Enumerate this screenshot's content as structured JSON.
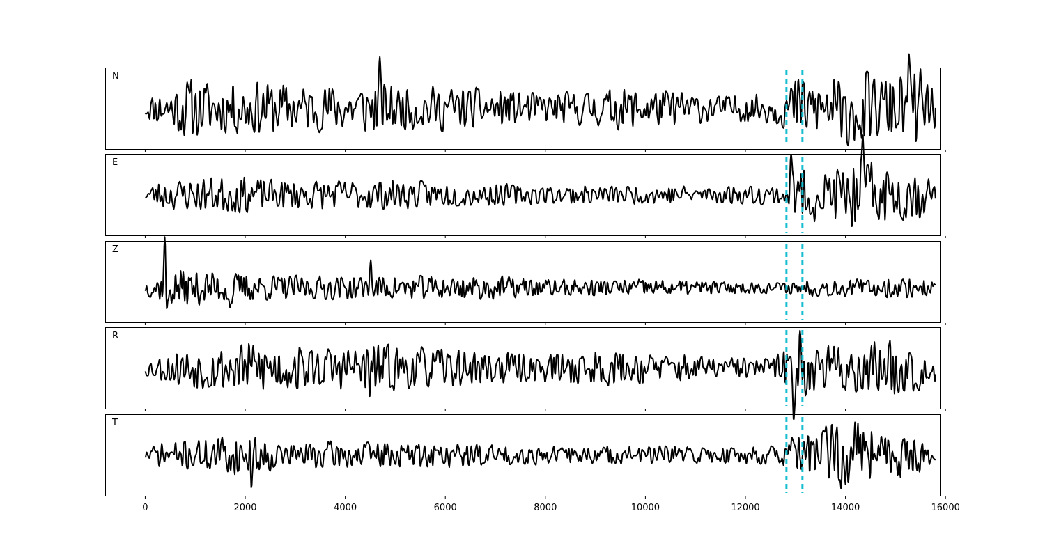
{
  "chart_data": {
    "type": "line",
    "title": "",
    "xlabel": "",
    "ylabel": "",
    "xlim": [
      -800,
      15900
    ],
    "xticks": [
      0,
      2000,
      4000,
      6000,
      8000,
      10000,
      12000,
      14000,
      16000
    ],
    "xtick_labels": [
      "0",
      "2000",
      "4000",
      "6000",
      "8000",
      "10000",
      "12000",
      "14000",
      "16000"
    ],
    "n_samples": 15800,
    "colors": {
      "trace": "#000000",
      "marker": "#17becf"
    },
    "markers": [
      12820,
      13140
    ],
    "grid": false,
    "panels": [
      {
        "label": "N",
        "seed": 11,
        "period": 115,
        "ylim": [
          -1.15,
          1.15
        ],
        "env": [
          [
            0,
            0.25
          ],
          [
            150,
            0.35
          ],
          [
            600,
            0.55
          ],
          [
            800,
            0.75
          ],
          [
            1500,
            0.6
          ],
          [
            2200,
            0.65
          ],
          [
            3500,
            0.55
          ],
          [
            4000,
            0.6
          ],
          [
            4600,
            0.65
          ],
          [
            5200,
            0.5
          ],
          [
            6000,
            0.55
          ],
          [
            7000,
            0.45
          ],
          [
            8000,
            0.35
          ],
          [
            9000,
            0.45
          ],
          [
            9500,
            0.5
          ],
          [
            10500,
            0.45
          ],
          [
            11500,
            0.3
          ],
          [
            12400,
            0.35
          ],
          [
            12800,
            0.5
          ],
          [
            13000,
            0.8
          ],
          [
            13500,
            0.7
          ],
          [
            14000,
            0.9
          ],
          [
            14500,
            0.85
          ],
          [
            15000,
            0.75
          ],
          [
            15500,
            0.95
          ],
          [
            15800,
            0.55
          ]
        ],
        "spikes": [
          [
            4690,
            0.75
          ],
          [
            13930,
            -1.05
          ],
          [
            14330,
            -1.0
          ],
          [
            15260,
            0.85
          ]
        ]
      },
      {
        "label": "E",
        "seed": 23,
        "period": 120,
        "ylim": [
          -1.15,
          1.15
        ],
        "env": [
          [
            0,
            0.15
          ],
          [
            300,
            0.35
          ],
          [
            1800,
            0.45
          ],
          [
            2500,
            0.35
          ],
          [
            4000,
            0.35
          ],
          [
            5000,
            0.35
          ],
          [
            6000,
            0.3
          ],
          [
            8000,
            0.22
          ],
          [
            9000,
            0.22
          ],
          [
            10000,
            0.22
          ],
          [
            11000,
            0.22
          ],
          [
            12000,
            0.22
          ],
          [
            12700,
            0.25
          ],
          [
            12900,
            0.55
          ],
          [
            13200,
            0.65
          ],
          [
            13800,
            0.65
          ],
          [
            14300,
            0.95
          ],
          [
            14800,
            0.65
          ],
          [
            15500,
            0.6
          ],
          [
            15800,
            0.3
          ]
        ],
        "spikes": [
          [
            12910,
            0.8
          ],
          [
            14240,
            -0.9
          ],
          [
            14360,
            0.95
          ]
        ]
      },
      {
        "label": "Z",
        "seed": 37,
        "period": 105,
        "ylim": [
          -0.85,
          1.15
        ],
        "env": [
          [
            0,
            0.15
          ],
          [
            300,
            0.3
          ],
          [
            500,
            0.4
          ],
          [
            1200,
            0.35
          ],
          [
            2000,
            0.3
          ],
          [
            3000,
            0.25
          ],
          [
            4500,
            0.25
          ],
          [
            6000,
            0.25
          ],
          [
            7000,
            0.25
          ],
          [
            8000,
            0.18
          ],
          [
            10000,
            0.18
          ],
          [
            12000,
            0.12
          ],
          [
            12800,
            0.12
          ],
          [
            13200,
            0.18
          ],
          [
            14500,
            0.18
          ],
          [
            15300,
            0.22
          ],
          [
            15800,
            0.15
          ]
        ],
        "spikes": [
          [
            390,
            1.1
          ],
          [
            440,
            -0.75
          ],
          [
            1700,
            -0.55
          ],
          [
            4500,
            0.6
          ]
        ]
      },
      {
        "label": "R",
        "seed": 53,
        "period": 115,
        "ylim": [
          -1.15,
          1.15
        ],
        "env": [
          [
            0,
            0.2
          ],
          [
            400,
            0.35
          ],
          [
            800,
            0.5
          ],
          [
            1500,
            0.55
          ],
          [
            2200,
            0.65
          ],
          [
            3500,
            0.5
          ],
          [
            4500,
            0.6
          ],
          [
            5500,
            0.5
          ],
          [
            7000,
            0.4
          ],
          [
            8000,
            0.35
          ],
          [
            9000,
            0.45
          ],
          [
            9500,
            0.4
          ],
          [
            10500,
            0.35
          ],
          [
            11500,
            0.25
          ],
          [
            12400,
            0.25
          ],
          [
            12800,
            0.45
          ],
          [
            13100,
            0.75
          ],
          [
            13500,
            0.5
          ],
          [
            14200,
            0.75
          ],
          [
            14700,
            0.7
          ],
          [
            15300,
            0.65
          ],
          [
            15800,
            0.35
          ]
        ],
        "spikes": [
          [
            4490,
            -0.6
          ],
          [
            12960,
            -0.98
          ],
          [
            13090,
            0.75
          ]
        ]
      },
      {
        "label": "T",
        "seed": 71,
        "period": 110,
        "ylim": [
          -1.15,
          1.15
        ],
        "env": [
          [
            0,
            0.15
          ],
          [
            300,
            0.3
          ],
          [
            1000,
            0.35
          ],
          [
            1700,
            0.5
          ],
          [
            2100,
            0.45
          ],
          [
            3000,
            0.3
          ],
          [
            4000,
            0.35
          ],
          [
            5000,
            0.3
          ],
          [
            6000,
            0.3
          ],
          [
            8000,
            0.22
          ],
          [
            9000,
            0.22
          ],
          [
            10000,
            0.22
          ],
          [
            11000,
            0.22
          ],
          [
            12000,
            0.22
          ],
          [
            12700,
            0.22
          ],
          [
            12900,
            0.4
          ],
          [
            13300,
            0.65
          ],
          [
            14000,
            0.85
          ],
          [
            14300,
            0.9
          ],
          [
            14800,
            0.55
          ],
          [
            15300,
            0.55
          ],
          [
            15800,
            0.25
          ]
        ],
        "spikes": [
          [
            2130,
            -0.5
          ],
          [
            14150,
            -0.95
          ],
          [
            14280,
            0.95
          ]
        ]
      }
    ]
  }
}
